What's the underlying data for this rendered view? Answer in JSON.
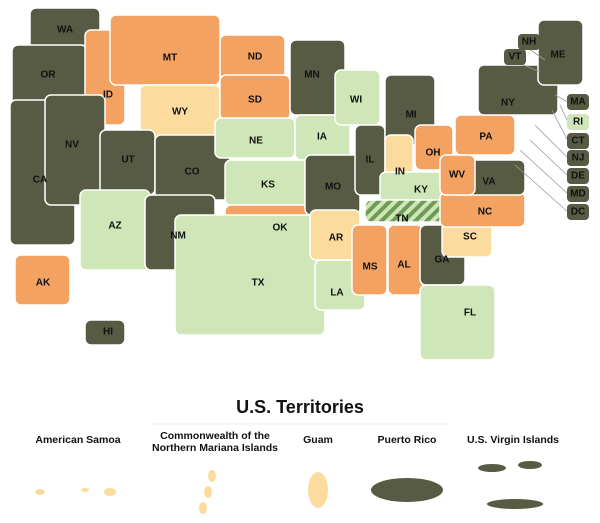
{
  "map": {
    "states": [
      {
        "label": "WA",
        "color": "#585b44"
      },
      {
        "label": "OR",
        "color": "#585b44"
      },
      {
        "label": "CA",
        "color": "#585b44"
      },
      {
        "label": "ID",
        "color": "#f4a261"
      },
      {
        "label": "NV",
        "color": "#585b44"
      },
      {
        "label": "MT",
        "color": "#f4a261"
      },
      {
        "label": "WY",
        "color": "#fbdc9e"
      },
      {
        "label": "UT",
        "color": "#585b44"
      },
      {
        "label": "AZ",
        "color": "#cfe6b8"
      },
      {
        "label": "CO",
        "color": "#585b44"
      },
      {
        "label": "NM",
        "color": "#585b44"
      },
      {
        "label": "ND",
        "color": "#f4a261"
      },
      {
        "label": "SD",
        "color": "#f4a261"
      },
      {
        "label": "NE",
        "color": "#cfe6b8"
      },
      {
        "label": "KS",
        "color": "#cfe6b8"
      },
      {
        "label": "OK",
        "color": "#f4a261"
      },
      {
        "label": "TX",
        "color": "#cfe6b8"
      },
      {
        "label": "MN",
        "color": "#585b44"
      },
      {
        "label": "IA",
        "color": "#cfe6b8"
      },
      {
        "label": "MO",
        "color": "#585b44"
      },
      {
        "label": "AR",
        "color": "#fbdc9e"
      },
      {
        "label": "LA",
        "color": "#cfe6b8"
      },
      {
        "label": "WI",
        "color": "#cfe6b8"
      },
      {
        "label": "IL",
        "color": "#585b44"
      },
      {
        "label": "MI",
        "color": "#585b44"
      },
      {
        "label": "IN",
        "color": "#fbdc9e"
      },
      {
        "label": "OH",
        "color": "#f4a261"
      },
      {
        "label": "KY",
        "color": "#cfe6b8"
      },
      {
        "label": "TN",
        "color": "#8fbf72",
        "striped": true
      },
      {
        "label": "MS",
        "color": "#f4a261"
      },
      {
        "label": "AL",
        "color": "#f4a261"
      },
      {
        "label": "GA",
        "color": "#585b44"
      },
      {
        "label": "FL",
        "color": "#cfe6b8"
      },
      {
        "label": "SC",
        "color": "#fbdc9e"
      },
      {
        "label": "NC",
        "color": "#f4a261"
      },
      {
        "label": "VA",
        "color": "#585b44"
      },
      {
        "label": "WV",
        "color": "#f4a261"
      },
      {
        "label": "PA",
        "color": "#f4a261"
      },
      {
        "label": "NY",
        "color": "#585b44"
      },
      {
        "label": "ME",
        "color": "#585b44"
      },
      {
        "label": "AK",
        "color": "#f4a261"
      },
      {
        "label": "HI",
        "color": "#585b44"
      }
    ],
    "callouts": [
      {
        "label": "NH",
        "color": "#585b44"
      },
      {
        "label": "VT",
        "color": "#585b44"
      },
      {
        "label": "MA",
        "color": "#585b44"
      },
      {
        "label": "RI",
        "color": "#cfe6b8"
      },
      {
        "label": "CT",
        "color": "#585b44"
      },
      {
        "label": "NJ",
        "color": "#585b44"
      },
      {
        "label": "DE",
        "color": "#585b44"
      },
      {
        "label": "MD",
        "color": "#585b44"
      },
      {
        "label": "DC",
        "color": "#585b44"
      }
    ]
  },
  "territories": {
    "title": "U.S. Territories",
    "items": [
      {
        "name": "American Samoa",
        "color": "#fbdc9e"
      },
      {
        "name": "Commonwealth of the Northern Mariana Islands",
        "color": "#fbdc9e"
      },
      {
        "name": "Guam",
        "color": "#fbdc9e"
      },
      {
        "name": "Puerto Rico",
        "color": "#585b44"
      },
      {
        "name": "U.S. Virgin Islands",
        "color": "#585b44"
      }
    ]
  }
}
